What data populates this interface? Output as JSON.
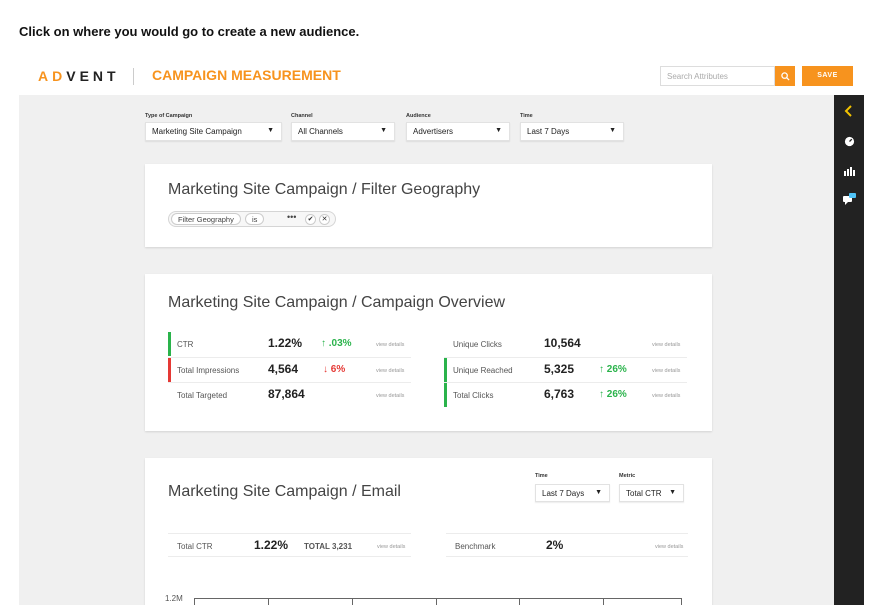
{
  "instruction": "Click on where you would go to create a new audience.",
  "header": {
    "logo": "ADVENT",
    "app_title": "CAMPAIGN MEASUREMENT",
    "search_placeholder": "Search Attributes",
    "save_label": "SAVE"
  },
  "filters": [
    {
      "label": "Type of Campaign",
      "value": "Marketing Site Campaign"
    },
    {
      "label": "Channel",
      "value": "All Channels"
    },
    {
      "label": "Audience",
      "value": "Advertisers"
    },
    {
      "label": "Time",
      "value": "Last 7 Days"
    }
  ],
  "geography_card": {
    "title": "Marketing Site Campaign / Filter Geography",
    "pill_field": "Filter Geography",
    "pill_op": "is",
    "more": "•••"
  },
  "overview_card": {
    "title": "Marketing Site Campaign / Campaign Overview",
    "left": [
      {
        "label": "CTR",
        "value": "1.22%",
        "delta": "↑ .03%",
        "link": "view details"
      },
      {
        "label": "Total Impressions",
        "value": "4,564",
        "delta": "↓ 6%",
        "link": "view details"
      },
      {
        "label": "Total Targeted",
        "value": "87,864",
        "delta": "",
        "link": "view details"
      }
    ],
    "right": [
      {
        "label": "Unique Clicks",
        "value": "10,564",
        "delta": "",
        "link": "view details"
      },
      {
        "label": "Unique Reached",
        "value": "5,325",
        "delta": "↑ 26%",
        "link": "view details"
      },
      {
        "label": "Total Clicks",
        "value": "6,763",
        "delta": "↑ 26%",
        "link": "view details"
      }
    ]
  },
  "email_card": {
    "title": "Marketing Site Campaign / Email",
    "time_label": "Time",
    "time_value": "Last 7 Days",
    "metric_label": "Metric",
    "metric_value": "Total CTR",
    "left_label": "Total CTR",
    "left_value": "1.22%",
    "left_total": "TOTAL 3,231",
    "left_link": "view details",
    "right_label": "Benchmark",
    "right_value": "2%",
    "right_link": "view details"
  },
  "chart": {
    "y_tick_top": "1.2M"
  },
  "colors": {
    "accent": "#f7931e",
    "positive": "#2ab34b",
    "negative": "#e53935",
    "rail": "#222222"
  },
  "rail_icons": [
    "chevron-left-icon",
    "dashboard-gauge-icon",
    "bar-chart-icon",
    "chat-icon"
  ]
}
